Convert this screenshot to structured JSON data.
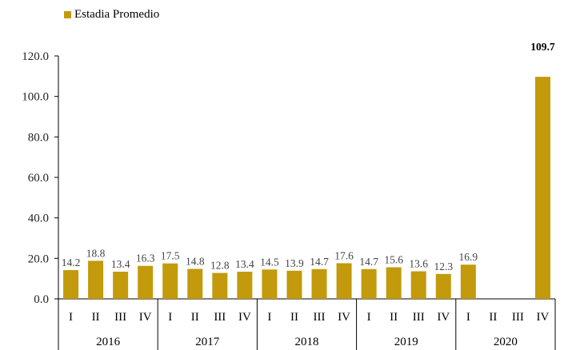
{
  "chart_data": {
    "type": "bar",
    "series": [
      {
        "name": "Estadia Promedio",
        "color": "#C29A0C",
        "values": [
          14.2,
          18.8,
          13.4,
          16.3,
          17.5,
          14.8,
          12.8,
          13.4,
          14.5,
          13.9,
          14.7,
          17.6,
          14.7,
          15.6,
          13.6,
          12.3,
          16.9,
          null,
          null,
          109.7
        ],
        "labels": [
          "14.2",
          "18.8",
          "13.4",
          "16.3",
          "17.5",
          "14.8",
          "12.8",
          "13.4",
          "14.5",
          "13.9",
          "14.7",
          "17.6",
          "14.7",
          "15.6",
          "13.6",
          "12.3",
          "16.9",
          "",
          "",
          "109.7"
        ],
        "bold_labels": [
          "109.7"
        ]
      }
    ],
    "categories": [
      "I",
      "II",
      "III",
      "IV",
      "I",
      "II",
      "III",
      "IV",
      "I",
      "II",
      "III",
      "IV",
      "I",
      "II",
      "III",
      "IV",
      "I",
      "II",
      "III",
      "IV"
    ],
    "groups": [
      {
        "label": "2016",
        "count": 4
      },
      {
        "label": "2017",
        "count": 4
      },
      {
        "label": "2018",
        "count": 4
      },
      {
        "label": "2019",
        "count": 4
      },
      {
        "label": "2020",
        "count": 4
      }
    ],
    "ylim": [
      0,
      120
    ],
    "yticks": [
      "0.0",
      "20.0",
      "40.0",
      "60.0",
      "80.0",
      "100.0",
      "120.0"
    ],
    "grid": false,
    "legend_position": "top-left",
    "title": "",
    "xlabel": "",
    "ylabel": ""
  }
}
